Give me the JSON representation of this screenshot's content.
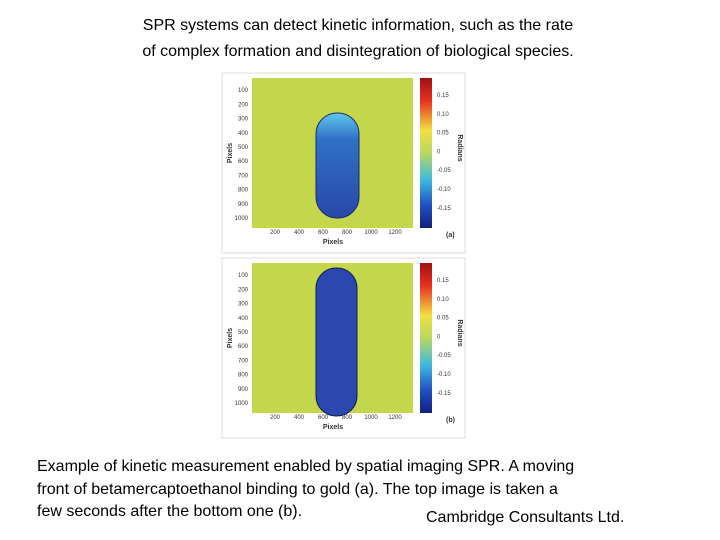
{
  "header": {
    "lines": [
      "SPR systems can detect kinetic information, such as the rate",
      "of complex formation and disintegration of biological species."
    ]
  },
  "figure": {
    "panels": [
      {
        "tag": "(a)",
        "xlabel": "Pixels",
        "ylabel": "Pixels",
        "cbar_label": "Radians",
        "xticks": [
          200,
          400,
          600,
          800,
          1000,
          1200
        ],
        "yticks": [
          100,
          200,
          300,
          400,
          500,
          600,
          700,
          800,
          900,
          1000
        ],
        "cbar_ticks": [
          "0.15",
          "0.10",
          "0.05",
          "0",
          "-0.05",
          "-0.10",
          "-0.15"
        ]
      },
      {
        "tag": "(b)",
        "xlabel": "Pixels",
        "ylabel": "Pixels",
        "cbar_label": "Radians",
        "xticks": [
          200,
          400,
          600,
          800,
          1000,
          1200
        ],
        "yticks": [
          100,
          200,
          300,
          400,
          500,
          600,
          700,
          800,
          900,
          1000
        ],
        "cbar_ticks": [
          "0.15",
          "0.10",
          "0.05",
          "0",
          "-0.05",
          "-0.10",
          "-0.15"
        ]
      }
    ]
  },
  "caption": {
    "lines": [
      "Example of kinetic measurement enabled by spatial imaging SPR. A moving",
      "front of betamercaptoethanol binding to gold (a). The top image is taken a",
      "few seconds after the bottom one (b)."
    ]
  },
  "credit": "Cambridge Consultants Ltd."
}
